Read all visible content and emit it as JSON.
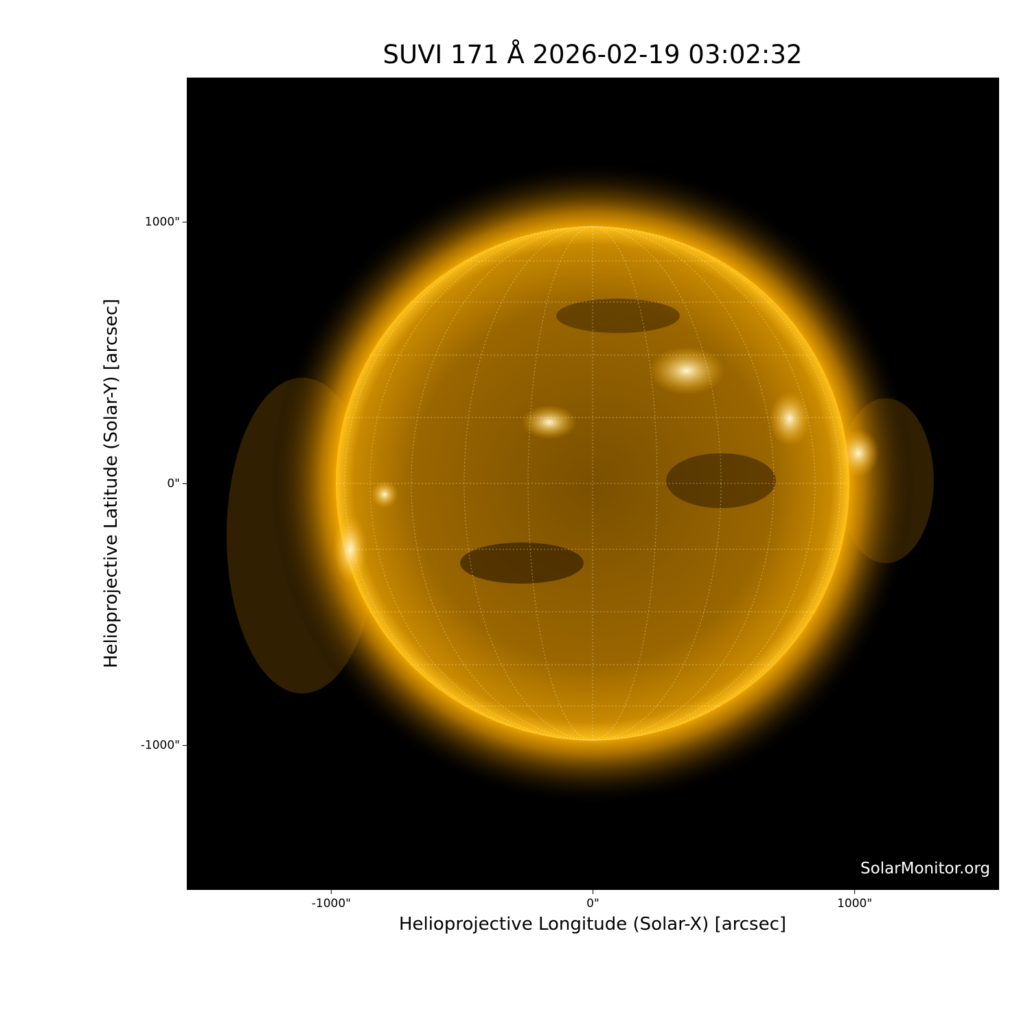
{
  "chart_data": {
    "type": "image",
    "title": "SUVI 171 Å 2026-02-19 03:02:32",
    "xlabel": "Helioprojective Longitude (Solar-X) [arcsec]",
    "ylabel": "Helioprojective Latitude (Solar-Y) [arcsec]",
    "annotation": "SolarMonitor.org",
    "xlim": [
      -1552,
      1552
    ],
    "ylim": [
      -1552,
      1552
    ],
    "xticks": [
      {
        "value": -1000,
        "label": "-1000\""
      },
      {
        "value": 0,
        "label": "0\""
      },
      {
        "value": 1000,
        "label": "1000\""
      }
    ],
    "yticks": [
      {
        "value": -1000,
        "label": "-1000\""
      },
      {
        "value": 0,
        "label": "0\""
      },
      {
        "value": 1000,
        "label": "1000\""
      }
    ]
  }
}
